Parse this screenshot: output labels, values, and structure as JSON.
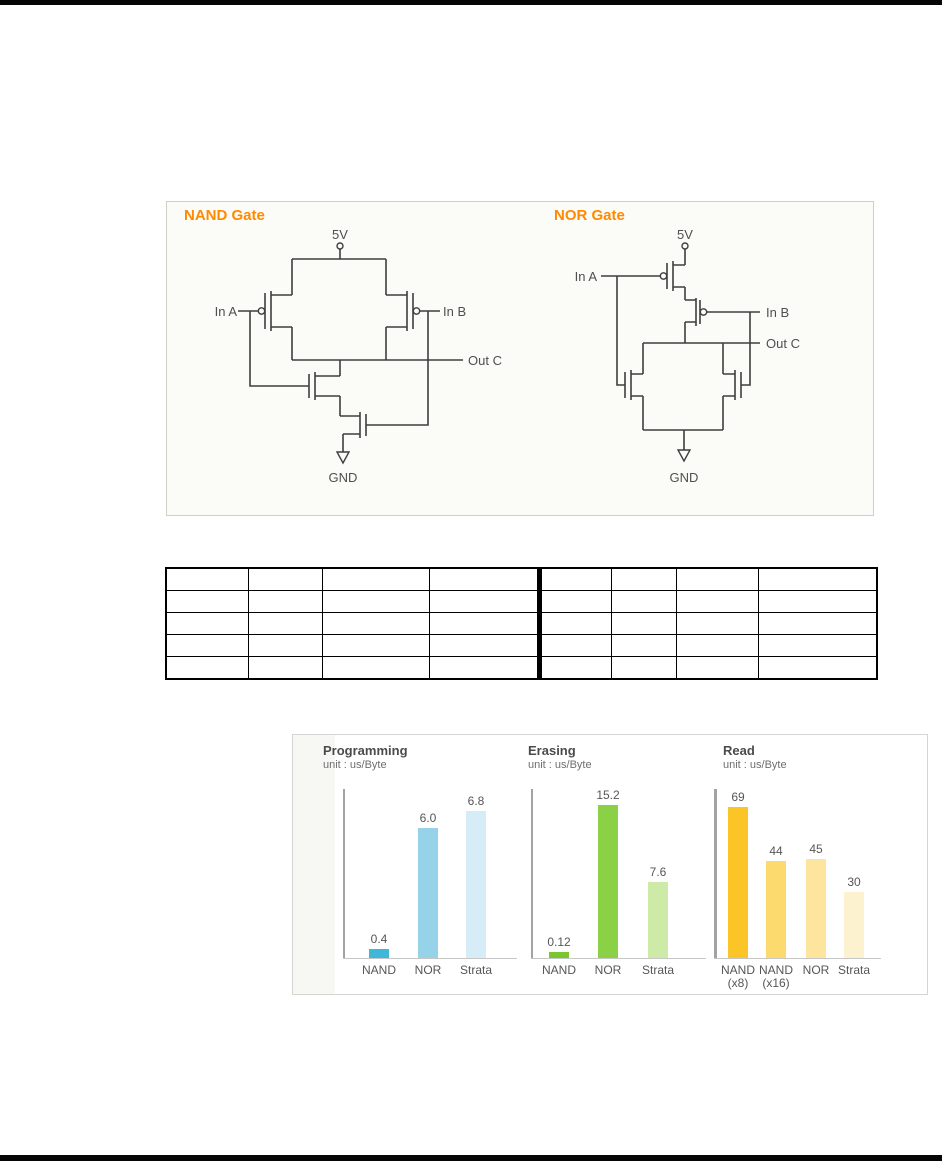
{
  "page": {
    "accent_orange": "#ff8a00"
  },
  "gates": {
    "nand": {
      "title": "NAND Gate",
      "labels": {
        "vdd": "5V",
        "in_a": "In A",
        "in_b": "In B",
        "out": "Out C",
        "gnd": "GND"
      }
    },
    "nor": {
      "title": "NOR Gate",
      "labels": {
        "vdd": "5V",
        "in_a": "In A",
        "in_b": "In B",
        "out": "Out C",
        "gnd": "GND"
      }
    }
  },
  "comparison_table": {
    "rows": [
      [
        "",
        "",
        "",
        "",
        "",
        "",
        "",
        ""
      ],
      [
        "",
        "",
        "",
        "",
        "",
        "",
        "",
        ""
      ],
      [
        "",
        "",
        "",
        "",
        "",
        "",
        "",
        ""
      ],
      [
        "",
        "",
        "",
        "",
        "",
        "",
        "",
        ""
      ],
      [
        "",
        "",
        "",
        "",
        "",
        "",
        "",
        ""
      ]
    ]
  },
  "chart_data": [
    {
      "type": "bar",
      "title": "Programming",
      "subtitle": "unit : us/Byte",
      "categories": [
        "NAND",
        "NOR",
        "Strata"
      ],
      "category_lines": [
        [
          "NAND"
        ],
        [
          "NOR"
        ],
        [
          "Strata"
        ]
      ],
      "values": [
        0.4,
        6.0,
        6.8
      ],
      "value_labels": [
        "0.4",
        "6.0",
        "6.8"
      ],
      "colors": [
        "#3eb7d9",
        "#96d3e8",
        "#d6edf7"
      ],
      "ylim": [
        0,
        7.8
      ],
      "grid": false,
      "legend": "none"
    },
    {
      "type": "bar",
      "title": "Erasing",
      "subtitle": "unit : us/Byte",
      "categories": [
        "NAND",
        "NOR",
        "Strata"
      ],
      "category_lines": [
        [
          "NAND"
        ],
        [
          "NOR"
        ],
        [
          "Strata"
        ]
      ],
      "values": [
        0.12,
        15.2,
        7.6
      ],
      "value_labels": [
        "0.12",
        "15.2",
        "7.6"
      ],
      "colors": [
        "#79c72e",
        "#8bd146",
        "#cdeaa6"
      ],
      "ylim": [
        0,
        16.8
      ],
      "grid": false,
      "legend": "none"
    },
    {
      "type": "bar",
      "title": "Read",
      "subtitle": "unit : us/Byte",
      "categories": [
        "NAND (x8)",
        "NAND (x16)",
        "NOR",
        "Strata"
      ],
      "category_lines": [
        [
          "NAND",
          "(x8)"
        ],
        [
          "NAND",
          "(x16)"
        ],
        [
          "NOR"
        ],
        [
          "Strata"
        ]
      ],
      "values": [
        69,
        44,
        45,
        30
      ],
      "value_labels": [
        "69",
        "44",
        "45",
        "30"
      ],
      "colors": [
        "#fcc527",
        "#fcda6e",
        "#fde59d",
        "#fdf2cf"
      ],
      "ylim": [
        0,
        77
      ],
      "grid": false,
      "legend": "none"
    }
  ]
}
